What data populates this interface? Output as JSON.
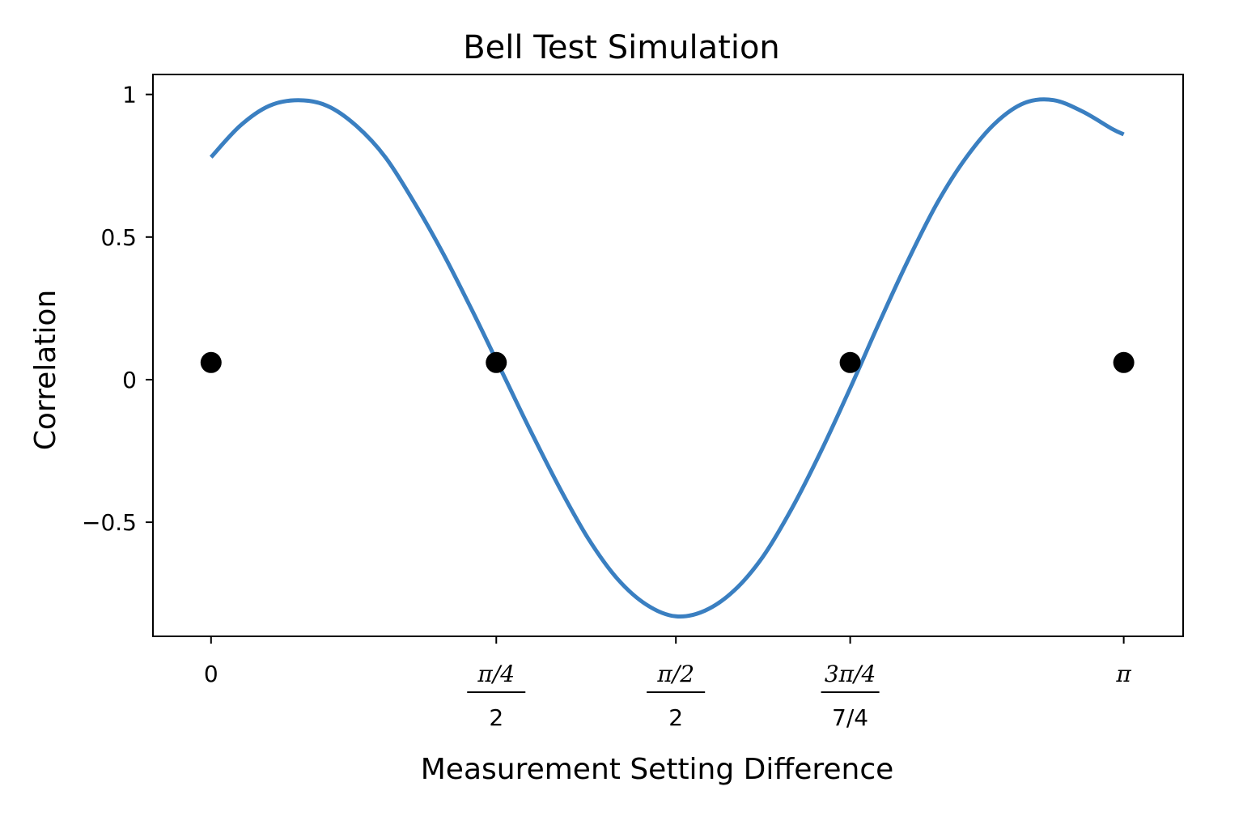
{
  "chart_data": {
    "type": "line",
    "title": "Bell Test Simulation",
    "xlabel": "Measurement Setting Difference",
    "ylabel": "Correlation",
    "xlim": [
      -0.1,
      1.673
    ],
    "ylim": [
      -0.9,
      1.07
    ],
    "grid": false,
    "legend": null,
    "colors": {
      "curve": "#3a7fc1",
      "points": "#000000"
    },
    "x_ticks": [
      {
        "value": 0,
        "parts": [
          "0"
        ]
      },
      {
        "value": 0.4909,
        "parts": [
          "π/4",
          "2"
        ]
      },
      {
        "value": 0.8,
        "parts": [
          "π/2",
          "2"
        ]
      },
      {
        "value": 1.1,
        "parts": [
          "3π/4",
          "7/4"
        ]
      },
      {
        "value": 1.5708,
        "parts": [
          "π"
        ]
      }
    ],
    "y_ticks": [
      {
        "value": 1,
        "label": "1"
      },
      {
        "value": 0.5,
        "label": "0.5"
      },
      {
        "value": 0,
        "label": "0"
      },
      {
        "value": -0.5,
        "label": "−0.5"
      }
    ],
    "series": [
      {
        "kind": "line",
        "x": [
          0,
          0.05,
          0.1,
          0.15,
          0.2,
          0.25,
          0.3,
          0.35,
          0.4,
          0.45,
          0.5,
          0.55,
          0.6,
          0.65,
          0.7,
          0.75,
          0.8,
          0.85,
          0.9,
          0.95,
          1.0,
          1.05,
          1.1,
          1.15,
          1.2,
          1.25,
          1.3,
          1.35,
          1.4,
          1.45,
          1.5,
          1.55,
          1.5708
        ],
        "y": [
          0.78,
          0.89,
          0.96,
          0.98,
          0.96,
          0.89,
          0.78,
          0.62,
          0.44,
          0.24,
          0.03,
          -0.18,
          -0.38,
          -0.56,
          -0.7,
          -0.79,
          -0.83,
          -0.81,
          -0.74,
          -0.62,
          -0.45,
          -0.25,
          -0.03,
          0.2,
          0.42,
          0.62,
          0.78,
          0.9,
          0.97,
          0.98,
          0.94,
          0.88,
          0.86
        ]
      },
      {
        "kind": "scatter",
        "x": [
          0,
          0.4909,
          1.1,
          1.5708
        ],
        "y": [
          0.06,
          0.06,
          0.06,
          0.06
        ]
      }
    ]
  }
}
